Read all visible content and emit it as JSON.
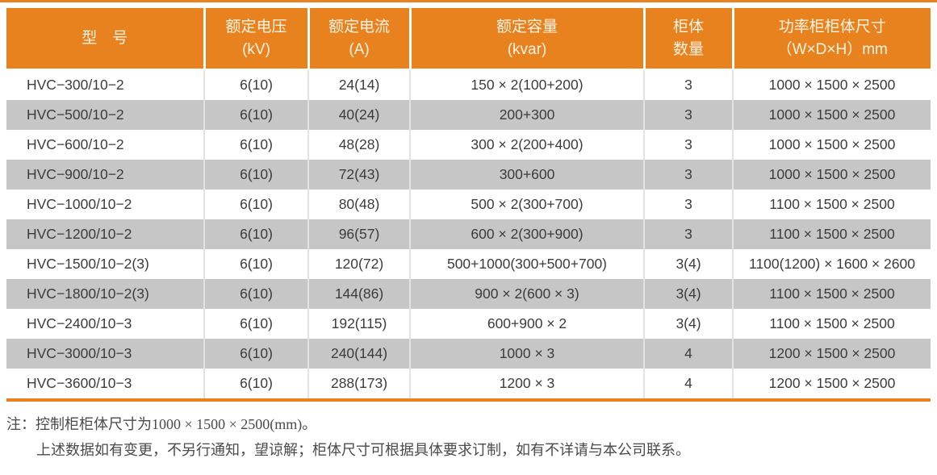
{
  "colors": {
    "accent": "#E8821F",
    "row_alt": "#C6C6C6",
    "header_text": "#FDF3E3",
    "cell_text": "#3C3C3C"
  },
  "table": {
    "columns": [
      {
        "line1": "型　号",
        "line2": ""
      },
      {
        "line1": "额定电压",
        "line2": "(kV)"
      },
      {
        "line1": "额定电流",
        "line2": "(A)"
      },
      {
        "line1": "额定容量",
        "line2": "(kvar)"
      },
      {
        "line1": "柜体",
        "line2": "数量"
      },
      {
        "line1": "功率柜柜体尺寸",
        "line2": "（W×D×H）mm"
      }
    ],
    "rows": [
      [
        "HVC−300/10−2",
        "6(10)",
        "24(14)",
        "150 × 2(100+200)",
        "3",
        "1000 × 1500 × 2500"
      ],
      [
        "HVC−500/10−2",
        "6(10)",
        "40(24)",
        "200+300",
        "3",
        "1000 × 1500 × 2500"
      ],
      [
        "HVC−600/10−2",
        "6(10)",
        "48(28)",
        "300 × 2(200+400)",
        "3",
        "1000 × 1500 × 2500"
      ],
      [
        "HVC−900/10−2",
        "6(10)",
        "72(43)",
        "300+600",
        "3",
        "1000 × 1500 × 2500"
      ],
      [
        "HVC−1000/10−2",
        "6(10)",
        "80(48)",
        "500 × 2(300+700)",
        "3",
        "1100 × 1500 × 2500"
      ],
      [
        "HVC−1200/10−2",
        "6(10)",
        "96(57)",
        "600 × 2(300+900)",
        "3",
        "1100 × 1500 × 2500"
      ],
      [
        "HVC−1500/10−2(3)",
        "6(10)",
        "120(72)",
        "500+1000(300+500+700)",
        "3(4)",
        "1100(1200) × 1600 × 2600"
      ],
      [
        "HVC−1800/10−2(3)",
        "6(10)",
        "144(86)",
        "900 × 2(600 × 3)",
        "3(4)",
        "1100 × 1500 × 2500"
      ],
      [
        "HVC−2400/10−3",
        "6(10)",
        "192(115)",
        "600+900 × 2",
        "3(4)",
        "1100 × 1500 × 2500"
      ],
      [
        "HVC−3000/10−3",
        "6(10)",
        "240(144)",
        "1000 × 3",
        "4",
        "1200 × 1500 × 2500"
      ],
      [
        "HVC−3600/10−3",
        "6(10)",
        "288(173)",
        "1200 × 3",
        "4",
        "1200 × 1500 × 2500"
      ]
    ]
  },
  "notes": {
    "line1": "注：控制柜柜体尺寸为1000 × 1500 × 2500(mm)。",
    "line2": "上述数据如有变更，不另行通知，望谅解；柜体尺寸可根据具体要求订制，如有不详请与本公司联系。"
  }
}
